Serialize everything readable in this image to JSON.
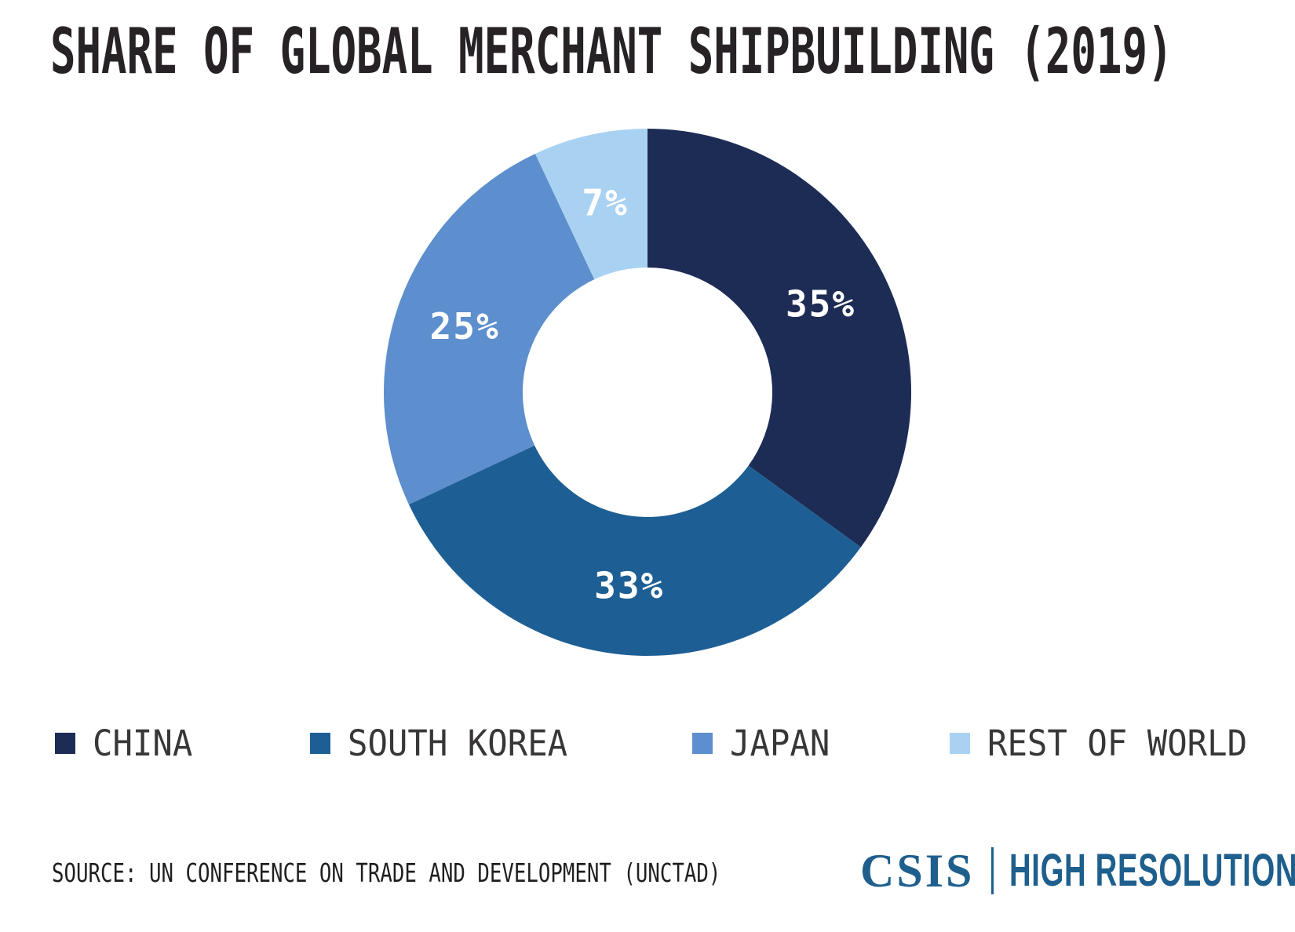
{
  "title": "SHARE OF GLOBAL MERCHANT SHIPBUILDING (2019)",
  "chart_data": {
    "type": "pie",
    "subtype": "donut",
    "title": "Share of Global Merchant Shipbuilding (2019)",
    "start_angle_deg": 0,
    "direction": "clockwise",
    "unit": "%",
    "slices": [
      {
        "label": "CHINA",
        "value": 35,
        "display": "35%",
        "color": "#1d2c55"
      },
      {
        "label": "SOUTH KOREA",
        "value": 33,
        "display": "33%",
        "color": "#1d5f94"
      },
      {
        "label": "JAPAN",
        "value": 25,
        "display": "25%",
        "color": "#5d8ecd"
      },
      {
        "label": "REST OF WORLD",
        "value": 7,
        "display": "7%",
        "color": "#a9d2f2"
      }
    ],
    "value_label_color": "#ffffff",
    "legend_position": "bottom"
  },
  "source": {
    "text": "SOURCE: UN CONFERENCE ON TRADE AND DEVELOPMENT (UNCTAD)"
  },
  "branding": {
    "org": "CSIS",
    "series": "HIGH RESOLUTION",
    "color": "#1e5f8d"
  }
}
